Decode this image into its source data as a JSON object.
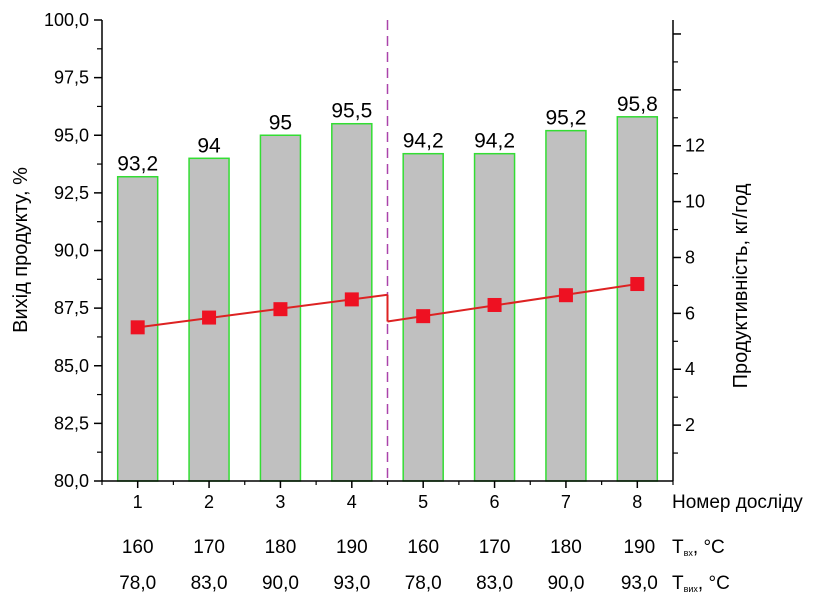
{
  "chart_data": {
    "type": "bar",
    "categories": [
      "1",
      "2",
      "3",
      "4",
      "5",
      "6",
      "7",
      "8"
    ],
    "values": [
      93.2,
      94,
      95,
      95.5,
      94.2,
      94.2,
      95.2,
      95.8
    ],
    "value_labels": [
      "93,2",
      "94",
      "95",
      "95,5",
      "94,2",
      "94,2",
      "95,2",
      "95,8"
    ],
    "series": [
      {
        "name": "Вихід продукту",
        "axis": "left",
        "type": "bar",
        "values": [
          93.2,
          94,
          95,
          95.5,
          94.2,
          94.2,
          95.2,
          95.8
        ]
      },
      {
        "name": "Продуктивність",
        "axis": "right",
        "type": "line",
        "values": [
          5.5,
          5.85,
          6.15,
          6.5,
          5.9,
          6.3,
          6.65,
          7.05
        ]
      }
    ],
    "ylabel": "Вихід продукту, %",
    "y2label": "Продуктивність, кг/год",
    "xlabel": "Номер досліду",
    "ylim": [
      80,
      100
    ],
    "y_ticks": [
      "80,0",
      "82,5",
      "85,0",
      "87,5",
      "90,0",
      "92,5",
      "95,0",
      "97,5",
      "100,0"
    ],
    "y2lim": [
      0,
      16.5
    ],
    "y2_ticks": [
      "2",
      "4",
      "6",
      "8",
      "10",
      "12"
    ],
    "row_t_in": {
      "label": "Т",
      "sub": "вх",
      "unit": ", °С",
      "values": [
        "160",
        "170",
        "180",
        "190",
        "160",
        "170",
        "180",
        "190"
      ]
    },
    "row_t_out": {
      "label": "Т",
      "sub": "вих",
      "unit": ", °С",
      "values": [
        "78,0",
        "83,0",
        "90,0",
        "93,0",
        "78,0",
        "83,0",
        "90,0",
        "93,0"
      ]
    },
    "colors": {
      "bar_fill": "#c0c0c0",
      "bar_stroke": "#33dd33",
      "line": "#dd2222",
      "marker": "#ee1122",
      "divider": "#aa44aa"
    },
    "grid": false,
    "legend": "none"
  }
}
